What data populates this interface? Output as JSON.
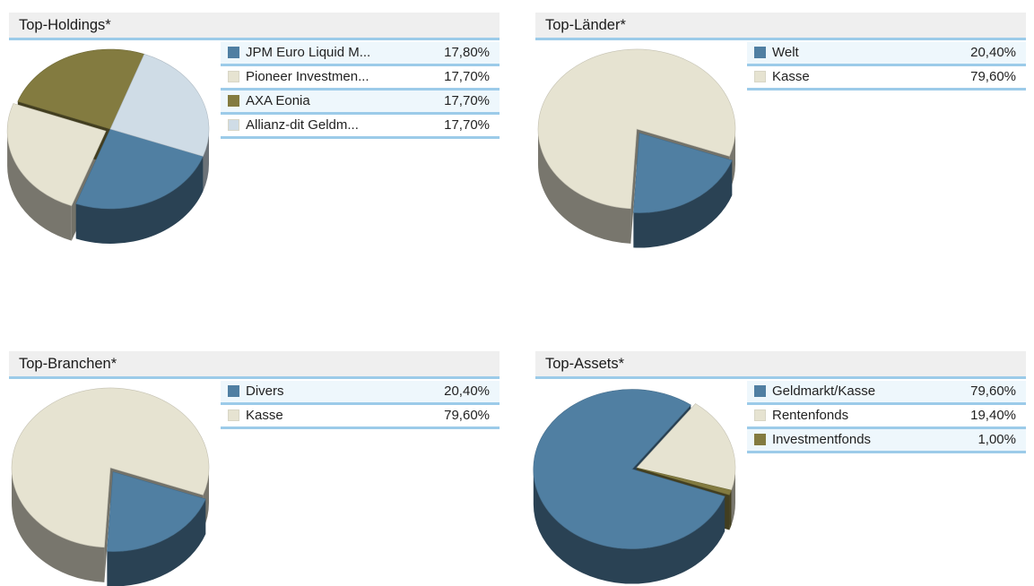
{
  "colors": {
    "slice1": "#507fa2",
    "slice2": "#e6e3d1",
    "slice3": "#837b40",
    "slice4": "#cfdce6"
  },
  "charts": [
    {
      "title": "Top-Holdings*",
      "chart_data": {
        "type": "pie",
        "title": "Top-Holdings*",
        "categories": [
          "JPM Euro Liquid M...",
          "Pioneer Investmen...",
          "AXA Eonia",
          "Allianz-dit Geldm..."
        ],
        "values": [
          17.8,
          17.7,
          17.7,
          17.7
        ],
        "labels": [
          "17,80%",
          "17,70%",
          "17,70%",
          "17,70%"
        ],
        "colors": [
          "#507fa2",
          "#e6e3d1",
          "#837b40",
          "#cfdce6"
        ]
      }
    },
    {
      "title": "Top-Länder*",
      "chart_data": {
        "type": "pie",
        "title": "Top-Länder*",
        "categories": [
          "Welt",
          "Kasse"
        ],
        "values": [
          20.4,
          79.6
        ],
        "labels": [
          "20,40%",
          "79,60%"
        ],
        "colors": [
          "#507fa2",
          "#e6e3d1"
        ]
      }
    },
    {
      "title": "Top-Branchen*",
      "chart_data": {
        "type": "pie",
        "title": "Top-Branchen*",
        "categories": [
          "Divers",
          "Kasse"
        ],
        "values": [
          20.4,
          79.6
        ],
        "labels": [
          "20,40%",
          "79,60%"
        ],
        "colors": [
          "#507fa2",
          "#e6e3d1"
        ]
      }
    },
    {
      "title": "Top-Assets*",
      "chart_data": {
        "type": "pie",
        "title": "Top-Assets*",
        "categories": [
          "Geldmarkt/Kasse",
          "Rentenfonds",
          "Investmentfonds"
        ],
        "values": [
          79.6,
          19.4,
          1.0
        ],
        "labels": [
          "79,60%",
          "19,40%",
          "1,00%"
        ],
        "colors": [
          "#507fa2",
          "#e6e3d1",
          "#837b40"
        ]
      }
    }
  ]
}
